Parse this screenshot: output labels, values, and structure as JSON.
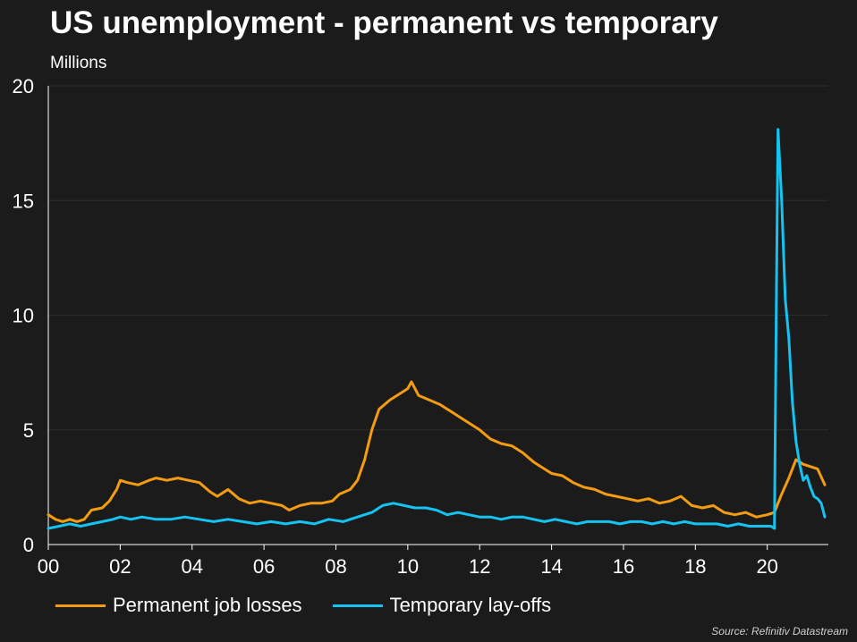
{
  "chart_data": {
    "type": "line",
    "title": "US unemployment - permanent vs temporary",
    "ylabel": "Millions",
    "xlabel": "",
    "xlim": [
      2000,
      2021.7
    ],
    "ylim": [
      0,
      20
    ],
    "y_ticks": [
      0,
      5,
      10,
      15,
      20
    ],
    "x_ticks": [
      2000,
      2002,
      2004,
      2006,
      2008,
      2010,
      2012,
      2014,
      2016,
      2018,
      2020
    ],
    "x_tick_labels": [
      "00",
      "02",
      "04",
      "06",
      "08",
      "10",
      "12",
      "14",
      "16",
      "18",
      "20"
    ],
    "grid": true,
    "legend_position": "bottom",
    "source": "Source: Refinitiv Datastream",
    "series": [
      {
        "name": "Permanent job losses",
        "color": "#f39c12",
        "x": [
          2000.0,
          2000.2,
          2000.4,
          2000.6,
          2000.8,
          2001.0,
          2001.2,
          2001.5,
          2001.7,
          2001.9,
          2002.0,
          2002.2,
          2002.5,
          2002.8,
          2003.0,
          2003.3,
          2003.6,
          2003.9,
          2004.2,
          2004.5,
          2004.7,
          2005.0,
          2005.3,
          2005.6,
          2005.9,
          2006.2,
          2006.5,
          2006.7,
          2007.0,
          2007.3,
          2007.6,
          2007.9,
          2008.1,
          2008.4,
          2008.6,
          2008.8,
          2009.0,
          2009.2,
          2009.5,
          2009.8,
          2010.0,
          2010.1,
          2010.3,
          2010.6,
          2010.9,
          2011.2,
          2011.5,
          2011.8,
          2012.0,
          2012.3,
          2012.6,
          2012.9,
          2013.2,
          2013.5,
          2013.8,
          2014.0,
          2014.3,
          2014.6,
          2014.9,
          2015.2,
          2015.5,
          2015.8,
          2016.1,
          2016.4,
          2016.7,
          2017.0,
          2017.3,
          2017.6,
          2017.9,
          2018.2,
          2018.5,
          2018.8,
          2019.1,
          2019.4,
          2019.7,
          2020.0,
          2020.2,
          2020.4,
          2020.6,
          2020.8,
          2021.0,
          2021.2,
          2021.4,
          2021.6
        ],
        "y": [
          1.3,
          1.1,
          1.0,
          1.1,
          1.0,
          1.1,
          1.5,
          1.6,
          1.9,
          2.4,
          2.8,
          2.7,
          2.6,
          2.8,
          2.9,
          2.8,
          2.9,
          2.8,
          2.7,
          2.3,
          2.1,
          2.4,
          2.0,
          1.8,
          1.9,
          1.8,
          1.7,
          1.5,
          1.7,
          1.8,
          1.8,
          1.9,
          2.2,
          2.4,
          2.8,
          3.7,
          5.0,
          5.9,
          6.3,
          6.6,
          6.8,
          7.1,
          6.5,
          6.3,
          6.1,
          5.8,
          5.5,
          5.2,
          5.0,
          4.6,
          4.4,
          4.3,
          4.0,
          3.6,
          3.3,
          3.1,
          3.0,
          2.7,
          2.5,
          2.4,
          2.2,
          2.1,
          2.0,
          1.9,
          2.0,
          1.8,
          1.9,
          2.1,
          1.7,
          1.6,
          1.7,
          1.4,
          1.3,
          1.4,
          1.2,
          1.3,
          1.4,
          2.2,
          2.9,
          3.7,
          3.5,
          3.4,
          3.3,
          2.6
        ]
      },
      {
        "name": "Temporary lay-offs",
        "color": "#14c3f0",
        "x": [
          2000.0,
          2000.3,
          2000.6,
          2000.9,
          2001.2,
          2001.5,
          2001.8,
          2002.0,
          2002.3,
          2002.6,
          2003.0,
          2003.4,
          2003.8,
          2004.2,
          2004.6,
          2005.0,
          2005.4,
          2005.8,
          2006.2,
          2006.6,
          2007.0,
          2007.4,
          2007.8,
          2008.2,
          2008.6,
          2009.0,
          2009.3,
          2009.6,
          2009.9,
          2010.2,
          2010.5,
          2010.8,
          2011.1,
          2011.4,
          2011.7,
          2012.0,
          2012.3,
          2012.6,
          2012.9,
          2013.2,
          2013.5,
          2013.8,
          2014.1,
          2014.4,
          2014.7,
          2015.0,
          2015.3,
          2015.6,
          2015.9,
          2016.2,
          2016.5,
          2016.8,
          2017.1,
          2017.4,
          2017.7,
          2018.0,
          2018.3,
          2018.6,
          2018.9,
          2019.2,
          2019.5,
          2019.8,
          2020.1,
          2020.2,
          2020.25,
          2020.3,
          2020.4,
          2020.5,
          2020.6,
          2020.7,
          2020.8,
          2020.9,
          2021.0,
          2021.1,
          2021.2,
          2021.3,
          2021.4,
          2021.5,
          2021.6
        ],
        "y": [
          0.7,
          0.8,
          0.9,
          0.8,
          0.9,
          1.0,
          1.1,
          1.2,
          1.1,
          1.2,
          1.1,
          1.1,
          1.2,
          1.1,
          1.0,
          1.1,
          1.0,
          0.9,
          1.0,
          0.9,
          1.0,
          0.9,
          1.1,
          1.0,
          1.2,
          1.4,
          1.7,
          1.8,
          1.7,
          1.6,
          1.6,
          1.5,
          1.3,
          1.4,
          1.3,
          1.2,
          1.2,
          1.1,
          1.2,
          1.2,
          1.1,
          1.0,
          1.1,
          1.0,
          0.9,
          1.0,
          1.0,
          1.0,
          0.9,
          1.0,
          1.0,
          0.9,
          1.0,
          0.9,
          1.0,
          0.9,
          0.9,
          0.9,
          0.8,
          0.9,
          0.8,
          0.8,
          0.8,
          0.7,
          10.0,
          18.1,
          15.0,
          10.7,
          9.0,
          6.2,
          4.5,
          3.5,
          2.8,
          3.0,
          2.5,
          2.1,
          2.0,
          1.8,
          1.2
        ]
      }
    ]
  }
}
